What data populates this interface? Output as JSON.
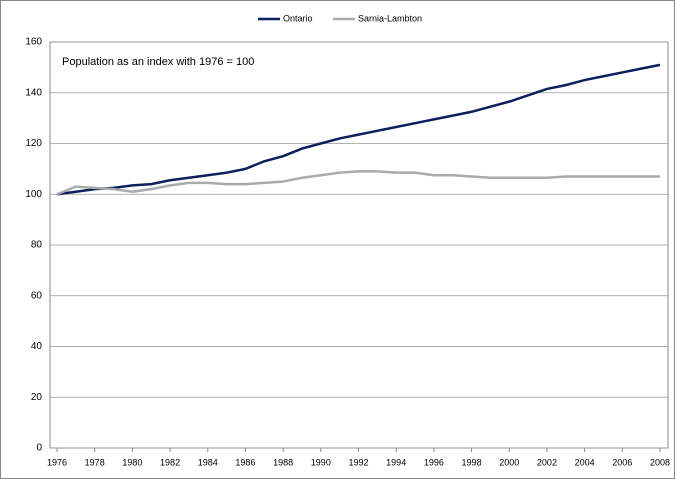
{
  "chart_data": {
    "type": "line",
    "annotation": "Population as an index with 1976 = 100",
    "x": [
      1976,
      1977,
      1978,
      1979,
      1980,
      1981,
      1982,
      1983,
      1984,
      1985,
      1986,
      1987,
      1988,
      1989,
      1990,
      1991,
      1992,
      1993,
      1994,
      1995,
      1996,
      1997,
      1998,
      1999,
      2000,
      2001,
      2002,
      2003,
      2004,
      2005,
      2006,
      2007,
      2008
    ],
    "series": [
      {
        "name": "Ontario",
        "color": "#0d1f5c",
        "values": [
          100,
          101,
          102,
          102.5,
          103.5,
          104,
          105.5,
          106.5,
          107.5,
          108.5,
          110,
          113,
          115,
          118,
          120,
          122,
          123.5,
          125,
          126.5,
          128,
          129.5,
          131,
          132.5,
          134.5,
          136.5,
          139,
          141.5,
          143,
          145,
          146.5,
          148,
          149.5,
          151
        ]
      },
      {
        "name": "Sarnia-Lambton",
        "color": "#aaaaaa",
        "values": [
          100,
          103,
          102.5,
          102,
          101,
          102,
          103.5,
          104.5,
          104.5,
          104,
          104,
          104.5,
          105,
          106.5,
          107.5,
          108.5,
          109,
          109,
          108.5,
          108.5,
          107.5,
          107.5,
          107,
          106.5,
          106.5,
          106.5,
          106.5,
          107,
          107,
          107,
          107,
          107,
          107
        ]
      }
    ],
    "xlim": [
      1976,
      2008
    ],
    "xticks": [
      1976,
      1978,
      1980,
      1982,
      1984,
      1986,
      1988,
      1990,
      1992,
      1994,
      1996,
      1998,
      2000,
      2002,
      2004,
      2006,
      2008
    ],
    "ylim": [
      0,
      160
    ],
    "yticks": [
      0,
      20,
      40,
      60,
      80,
      100,
      120,
      140,
      160
    ],
    "grid": true,
    "legend": "top"
  }
}
